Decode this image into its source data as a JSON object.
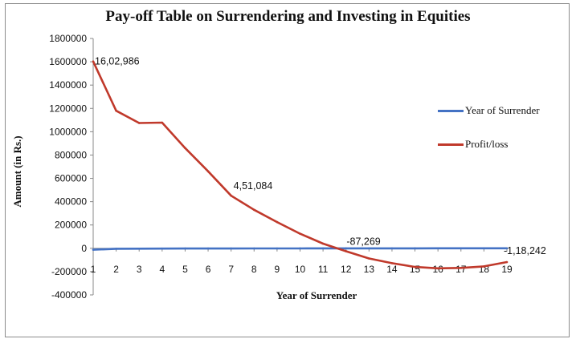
{
  "chart_data": {
    "type": "line",
    "title": "Pay-off Table on Surrendering and Investing in Equities",
    "xlabel": "Year of Surrender",
    "ylabel": "Amount (in Rs.)",
    "categories": [
      "1",
      "2",
      "3",
      "4",
      "5",
      "6",
      "7",
      "8",
      "9",
      "10",
      "11",
      "12",
      "13",
      "14",
      "15",
      "16",
      "17",
      "18",
      "19"
    ],
    "yticks": [
      "1800000",
      "1600000",
      "1400000",
      "1200000",
      "1000000",
      "800000",
      "600000",
      "400000",
      "200000",
      "0",
      "-200000",
      "-400000"
    ],
    "ylim": [
      -400000,
      1800000
    ],
    "grid": false,
    "legend_position": "right",
    "series": [
      {
        "name": "Year of Surrender",
        "color": "#4472c4",
        "values": [
          -12000,
          -4000,
          -3000,
          -2500,
          -2000,
          -1800,
          -1600,
          -1400,
          -1200,
          -1000,
          -800,
          -600,
          -500,
          -400,
          -300,
          -200,
          -150,
          -100,
          -50
        ]
      },
      {
        "name": "Profit/loss",
        "color": "#c0392b",
        "values": [
          1602986,
          1180000,
          1075000,
          1078000,
          860000,
          660000,
          451084,
          330000,
          225000,
          125000,
          40000,
          -25000,
          -87269,
          -128000,
          -160000,
          -172000,
          -168000,
          -155000,
          -118242
        ]
      }
    ],
    "data_labels": [
      {
        "series": 1,
        "index": 0,
        "text": "16,02,986"
      },
      {
        "series": 1,
        "index": 6,
        "text": "4,51,084"
      },
      {
        "series": 1,
        "index": 12,
        "text": "-87,269"
      },
      {
        "series": 1,
        "index": 18,
        "text": "-1,18,242"
      }
    ]
  }
}
